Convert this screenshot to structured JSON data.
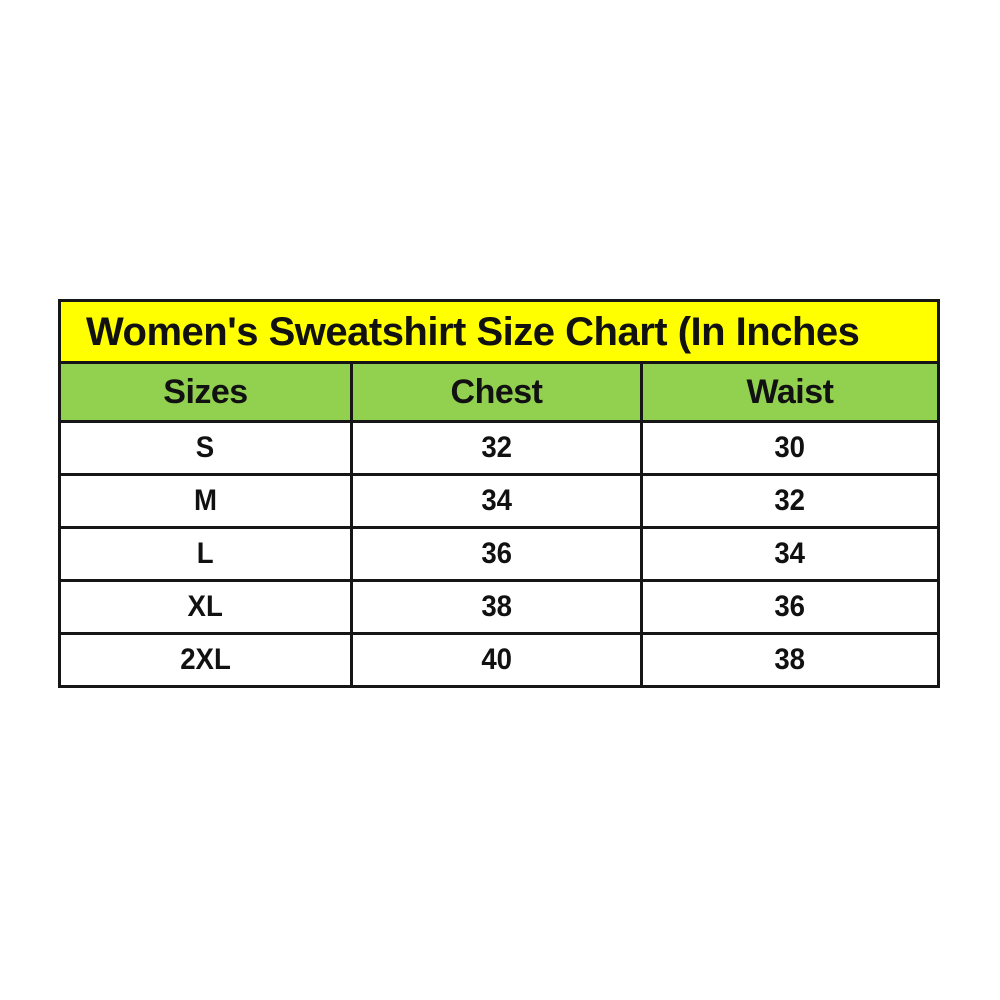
{
  "chart_data": {
    "type": "table",
    "title": "Women's Sweatshirt Size Chart (In Inches",
    "columns": [
      "Sizes",
      "Chest",
      "Waist"
    ],
    "rows": [
      [
        "S",
        "32",
        "30"
      ],
      [
        "M",
        "34",
        "32"
      ],
      [
        "L",
        "36",
        "34"
      ],
      [
        "XL",
        "38",
        "36"
      ],
      [
        "2XL",
        "40",
        "38"
      ]
    ]
  },
  "colors": {
    "title_bg": "#ffff00",
    "header_bg": "#92d050",
    "border": "#161616",
    "text": "#111111",
    "row_bg": "#ffffff"
  }
}
